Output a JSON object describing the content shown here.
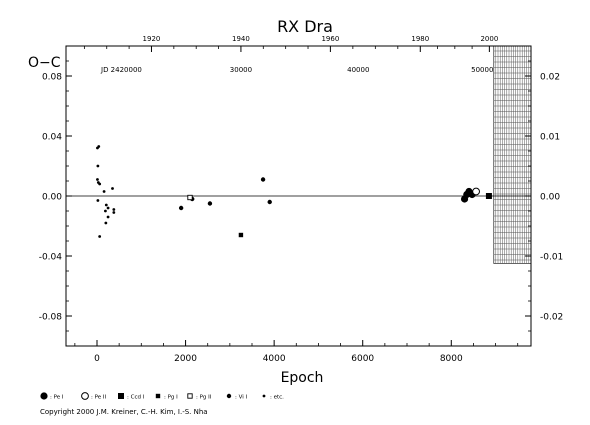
{
  "chart_data": {
    "type": "scatter",
    "title": "RX Dra",
    "xlabel": "Epoch",
    "ylabel": "O−C",
    "xlim": [
      -700,
      9800
    ],
    "ylim": [
      -0.1,
      0.1
    ],
    "x_ticks": [
      0,
      2000,
      4000,
      6000,
      8000
    ],
    "x_tick_labels": [
      "0",
      "2000",
      "4000",
      "6000",
      "8000"
    ],
    "y_ticks": [
      0.08,
      0.04,
      0.0,
      -0.04,
      -0.08
    ],
    "y_tick_labels": [
      "0.08",
      "0.04",
      "0.00",
      "-0.04",
      "-0.08"
    ],
    "top_axis": {
      "ticks": [
        1920,
        1940,
        1960,
        1980,
        2000
      ],
      "tick_labels": [
        "1920",
        "1940",
        "1960",
        "1980",
        "2000"
      ],
      "tick_epochs": [
        1230,
        3250,
        5270,
        7300,
        8860
      ]
    },
    "jd_axis": {
      "labels": [
        "JD 2420000",
        "30000",
        "40000",
        "50000"
      ],
      "label_epochs": [
        0,
        3250,
        5900,
        8700
      ]
    },
    "right_axis": {
      "ticks": [
        0.02,
        0.01,
        0.0,
        -0.01,
        -0.02
      ],
      "tick_labels": [
        "0.02",
        "0.01",
        "0.00",
        "-0.01",
        "-0.02"
      ],
      "factor": 0.25
    },
    "shaded_region": {
      "x": [
        8960,
        9800
      ],
      "y": [
        -0.045,
        0.1
      ]
    },
    "grid": false,
    "legend_position": "bottom",
    "legend": [
      {
        "symbol": "filled-circle",
        "label": ": Pe I"
      },
      {
        "symbol": "open-circle",
        "label": ": Pe II"
      },
      {
        "symbol": "filled-square",
        "label": ": Ccd I"
      },
      {
        "symbol": "small-square",
        "label": ": Pg I"
      },
      {
        "symbol": "open-square",
        "label": ": Pg II"
      },
      {
        "symbol": "small-circle",
        "label": ": Vi I"
      },
      {
        "symbol": "dot",
        "label": ": etc."
      }
    ],
    "series": [
      {
        "name": ": etc.",
        "symbol": "dot",
        "points": [
          [
            10,
            0.032
          ],
          [
            40,
            0.033
          ],
          [
            20,
            0.02
          ],
          [
            10,
            0.011
          ],
          [
            30,
            0.009
          ],
          [
            60,
            0.008
          ],
          [
            160,
            0.003
          ],
          [
            20,
            -0.003
          ],
          [
            210,
            -0.006
          ],
          [
            250,
            -0.008
          ],
          [
            380,
            -0.009
          ],
          [
            190,
            -0.01
          ],
          [
            380,
            -0.011
          ],
          [
            250,
            -0.014
          ],
          [
            200,
            -0.018
          ],
          [
            60,
            -0.027
          ],
          [
            350,
            0.005
          ]
        ]
      },
      {
        "name": ": Vi I",
        "symbol": "small-circle",
        "points": [
          [
            1900,
            -0.008
          ],
          [
            2150,
            -0.002
          ],
          [
            2550,
            -0.005
          ],
          [
            3750,
            0.011
          ],
          [
            3900,
            -0.004
          ]
        ]
      },
      {
        "name": ": Pg I",
        "symbol": "small-square",
        "points": [
          [
            3250,
            -0.026
          ]
        ]
      },
      {
        "name": ": Pg II",
        "symbol": "open-square",
        "points": [
          [
            2100,
            -0.001
          ]
        ]
      },
      {
        "name": ": Pe I",
        "symbol": "filled-circle",
        "points": [
          [
            8300,
            -0.002
          ],
          [
            8350,
            0.001
          ],
          [
            8400,
            0.003
          ],
          [
            8470,
            0.001
          ]
        ]
      },
      {
        "name": ": Pe II",
        "symbol": "open-circle",
        "points": [
          [
            8560,
            0.003
          ]
        ]
      },
      {
        "name": ": Ccd I",
        "symbol": "filled-square",
        "points": [
          [
            8850,
            0.0
          ]
        ]
      }
    ]
  },
  "copyright": "Copyright 2000 J.M. Kreiner, C.-H. Kim, I.-S. Nha"
}
